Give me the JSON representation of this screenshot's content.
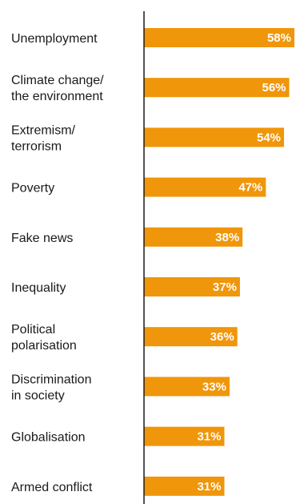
{
  "chart_data": {
    "type": "bar",
    "orientation": "horizontal",
    "categories": [
      "Unemployment",
      "Climate change/ the environment",
      "Extremism/ terrorism",
      "Poverty",
      "Fake news",
      "Inequality",
      "Political polarisation",
      "Discrimination in society",
      "Globalisation",
      "Armed conflict"
    ],
    "category_lines": [
      [
        "Unemployment"
      ],
      [
        "Climate change/",
        "the environment"
      ],
      [
        "Extremism/",
        "terrorism"
      ],
      [
        "Poverty"
      ],
      [
        "Fake news"
      ],
      [
        "Inequality"
      ],
      [
        "Political",
        "polarisation"
      ],
      [
        "Discrimination",
        "in society"
      ],
      [
        "Globalisation"
      ],
      [
        "Armed conflict"
      ]
    ],
    "values": [
      58,
      56,
      54,
      47,
      38,
      37,
      36,
      33,
      31,
      31
    ],
    "data_labels": [
      "58%",
      "56%",
      "54%",
      "47%",
      "38%",
      "37%",
      "36%",
      "33%",
      "31%",
      "31%"
    ],
    "unit": "%",
    "xlim": [
      0,
      58
    ],
    "bar_color": "#f0960a",
    "grid": false,
    "legend": "none"
  }
}
